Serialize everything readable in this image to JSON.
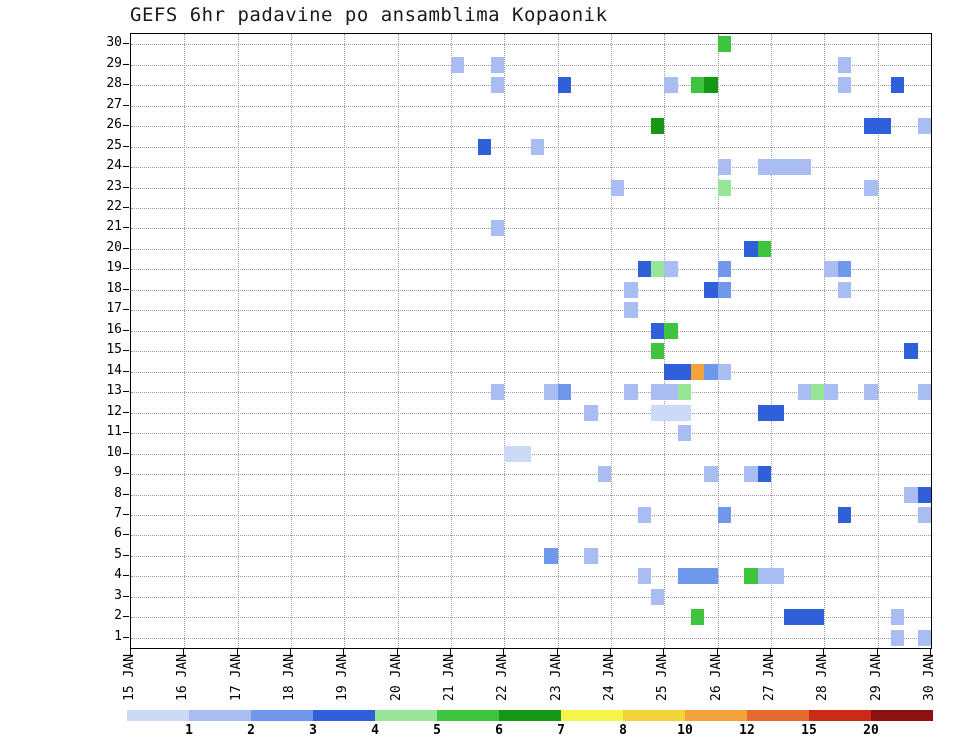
{
  "chart_data": {
    "type": "heatmap",
    "title": "GEFS 6hr padavine po ansamblima Kopaonik",
    "xlabel": "",
    "ylabel": "",
    "members": 30,
    "x_tick_labels": [
      "15 JAN",
      "16 JAN",
      "17 JAN",
      "18 JAN",
      "19 JAN",
      "20 JAN",
      "21 JAN",
      "22 JAN",
      "23 JAN",
      "24 JAN",
      "25 JAN",
      "26 JAN",
      "27 JAN",
      "28 JAN",
      "29 JAN",
      "30 JAN"
    ],
    "y_tick_labels": [
      "30",
      "29",
      "28",
      "27",
      "26",
      "25",
      "24",
      "23",
      "22",
      "21",
      "20",
      "19",
      "18",
      "17",
      "16",
      "15",
      "14",
      "13",
      "12",
      "11",
      "10",
      "9",
      "8",
      "7",
      "6",
      "5",
      "4",
      "3",
      "2",
      "1"
    ],
    "colorbar": {
      "labels": [
        "1",
        "2",
        "3",
        "4",
        "5",
        "6",
        "7",
        "8",
        "10",
        "12",
        "15",
        "20"
      ],
      "colors": [
        "#ccd9f7",
        "#a9bdf2",
        "#6f97eb",
        "#2f5fd9",
        "#97e597",
        "#3ec43e",
        "#159815",
        "#f5f549",
        "#f2d438",
        "#f2a33c",
        "#e56a2d",
        "#cc2a17",
        "#8c1212"
      ]
    },
    "cells": [
      {
        "m": 30,
        "d": 11.0,
        "w": 1,
        "c": 5
      },
      {
        "m": 29,
        "d": 6.0,
        "w": 1,
        "c": 1
      },
      {
        "m": 29,
        "d": 6.75,
        "w": 1,
        "c": 1
      },
      {
        "m": 29,
        "d": 13.25,
        "w": 1,
        "c": 1
      },
      {
        "m": 28,
        "d": 6.75,
        "w": 1,
        "c": 1
      },
      {
        "m": 28,
        "d": 8.0,
        "w": 1,
        "c": 3
      },
      {
        "m": 28,
        "d": 10.0,
        "w": 1,
        "c": 1
      },
      {
        "m": 28,
        "d": 10.5,
        "w": 1,
        "c": 5
      },
      {
        "m": 28,
        "d": 10.75,
        "w": 1,
        "c": 6
      },
      {
        "m": 28,
        "d": 13.25,
        "w": 1,
        "c": 1
      },
      {
        "m": 28,
        "d": 14.25,
        "w": 1,
        "c": 3
      },
      {
        "m": 26,
        "d": 9.75,
        "w": 1,
        "c": 6
      },
      {
        "m": 26,
        "d": 13.75,
        "w": 2,
        "c": 3
      },
      {
        "m": 26,
        "d": 14.75,
        "w": 1,
        "c": 1
      },
      {
        "m": 25,
        "d": 6.5,
        "w": 1,
        "c": 3
      },
      {
        "m": 25,
        "d": 7.5,
        "w": 1,
        "c": 1
      },
      {
        "m": 24,
        "d": 11.0,
        "w": 1,
        "c": 1
      },
      {
        "m": 24,
        "d": 11.75,
        "w": 4,
        "c": 1
      },
      {
        "m": 23,
        "d": 9.0,
        "w": 1,
        "c": 1
      },
      {
        "m": 23,
        "d": 11.0,
        "w": 1,
        "c": 4
      },
      {
        "m": 23,
        "d": 13.75,
        "w": 1,
        "c": 1
      },
      {
        "m": 21,
        "d": 6.75,
        "w": 1,
        "c": 1
      },
      {
        "m": 20,
        "d": 11.5,
        "w": 1,
        "c": 3
      },
      {
        "m": 20,
        "d": 11.75,
        "w": 1,
        "c": 5
      },
      {
        "m": 19,
        "d": 9.5,
        "w": 1,
        "c": 3
      },
      {
        "m": 19,
        "d": 9.75,
        "w": 1,
        "c": 4
      },
      {
        "m": 19,
        "d": 10.0,
        "w": 1,
        "c": 1
      },
      {
        "m": 19,
        "d": 11.0,
        "w": 1,
        "c": 2
      },
      {
        "m": 19,
        "d": 13.0,
        "w": 1,
        "c": 1
      },
      {
        "m": 19,
        "d": 13.25,
        "w": 1,
        "c": 2
      },
      {
        "m": 18,
        "d": 9.25,
        "w": 1,
        "c": 1
      },
      {
        "m": 18,
        "d": 10.75,
        "w": 1,
        "c": 3
      },
      {
        "m": 18,
        "d": 11.0,
        "w": 1,
        "c": 2
      },
      {
        "m": 18,
        "d": 13.25,
        "w": 1,
        "c": 1
      },
      {
        "m": 17,
        "d": 9.25,
        "w": 1,
        "c": 1
      },
      {
        "m": 16,
        "d": 9.75,
        "w": 1,
        "c": 3
      },
      {
        "m": 16,
        "d": 10.0,
        "w": 1,
        "c": 5
      },
      {
        "m": 15,
        "d": 9.75,
        "w": 1,
        "c": 5
      },
      {
        "m": 15,
        "d": 14.5,
        "w": 1,
        "c": 3
      },
      {
        "m": 14,
        "d": 10.0,
        "w": 2,
        "c": 3
      },
      {
        "m": 14,
        "d": 10.5,
        "w": 1,
        "c": 9
      },
      {
        "m": 14,
        "d": 10.75,
        "w": 1,
        "c": 2
      },
      {
        "m": 14,
        "d": 11.0,
        "w": 1,
        "c": 1
      },
      {
        "m": 13,
        "d": 6.75,
        "w": 1,
        "c": 1
      },
      {
        "m": 13,
        "d": 7.75,
        "w": 1,
        "c": 1
      },
      {
        "m": 13,
        "d": 8.0,
        "w": 1,
        "c": 2
      },
      {
        "m": 13,
        "d": 9.25,
        "w": 1,
        "c": 1
      },
      {
        "m": 13,
        "d": 9.75,
        "w": 2,
        "c": 1
      },
      {
        "m": 13,
        "d": 10.25,
        "w": 1,
        "c": 4
      },
      {
        "m": 13,
        "d": 12.5,
        "w": 1,
        "c": 1
      },
      {
        "m": 13,
        "d": 12.75,
        "w": 1,
        "c": 4
      },
      {
        "m": 13,
        "d": 13.0,
        "w": 1,
        "c": 1
      },
      {
        "m": 13,
        "d": 13.75,
        "w": 1,
        "c": 1
      },
      {
        "m": 13,
        "d": 14.75,
        "w": 1,
        "c": 1
      },
      {
        "m": 12,
        "d": 8.5,
        "w": 1,
        "c": 1
      },
      {
        "m": 12,
        "d": 9.75,
        "w": 3,
        "c": 0
      },
      {
        "m": 12,
        "d": 11.75,
        "w": 2,
        "c": 3
      },
      {
        "m": 11,
        "d": 10.25,
        "w": 1,
        "c": 1
      },
      {
        "m": 10,
        "d": 7.0,
        "w": 2,
        "c": 0
      },
      {
        "m": 9,
        "d": 8.75,
        "w": 1,
        "c": 1
      },
      {
        "m": 9,
        "d": 10.75,
        "w": 1,
        "c": 1
      },
      {
        "m": 9,
        "d": 11.5,
        "w": 1,
        "c": 1
      },
      {
        "m": 9,
        "d": 11.75,
        "w": 1,
        "c": 3
      },
      {
        "m": 8,
        "d": 14.5,
        "w": 1,
        "c": 1
      },
      {
        "m": 8,
        "d": 14.75,
        "w": 1,
        "c": 3
      },
      {
        "m": 7,
        "d": 9.5,
        "w": 1,
        "c": 1
      },
      {
        "m": 7,
        "d": 11.0,
        "w": 1,
        "c": 2
      },
      {
        "m": 7,
        "d": 13.25,
        "w": 1,
        "c": 3
      },
      {
        "m": 7,
        "d": 14.75,
        "w": 1,
        "c": 1
      },
      {
        "m": 5,
        "d": 7.75,
        "w": 1,
        "c": 2
      },
      {
        "m": 5,
        "d": 8.5,
        "w": 1,
        "c": 1
      },
      {
        "m": 4,
        "d": 9.5,
        "w": 1,
        "c": 1
      },
      {
        "m": 4,
        "d": 10.25,
        "w": 3,
        "c": 2
      },
      {
        "m": 4,
        "d": 11.5,
        "w": 1,
        "c": 5
      },
      {
        "m": 4,
        "d": 11.75,
        "w": 2,
        "c": 1
      },
      {
        "m": 3,
        "d": 9.75,
        "w": 1,
        "c": 1
      },
      {
        "m": 2,
        "d": 10.5,
        "w": 1,
        "c": 5
      },
      {
        "m": 2,
        "d": 12.25,
        "w": 3,
        "c": 3
      },
      {
        "m": 2,
        "d": 14.25,
        "w": 1,
        "c": 1
      },
      {
        "m": 1,
        "d": 14.25,
        "w": 1,
        "c": 1
      },
      {
        "m": 1,
        "d": 14.75,
        "w": 1,
        "c": 1
      }
    ]
  }
}
